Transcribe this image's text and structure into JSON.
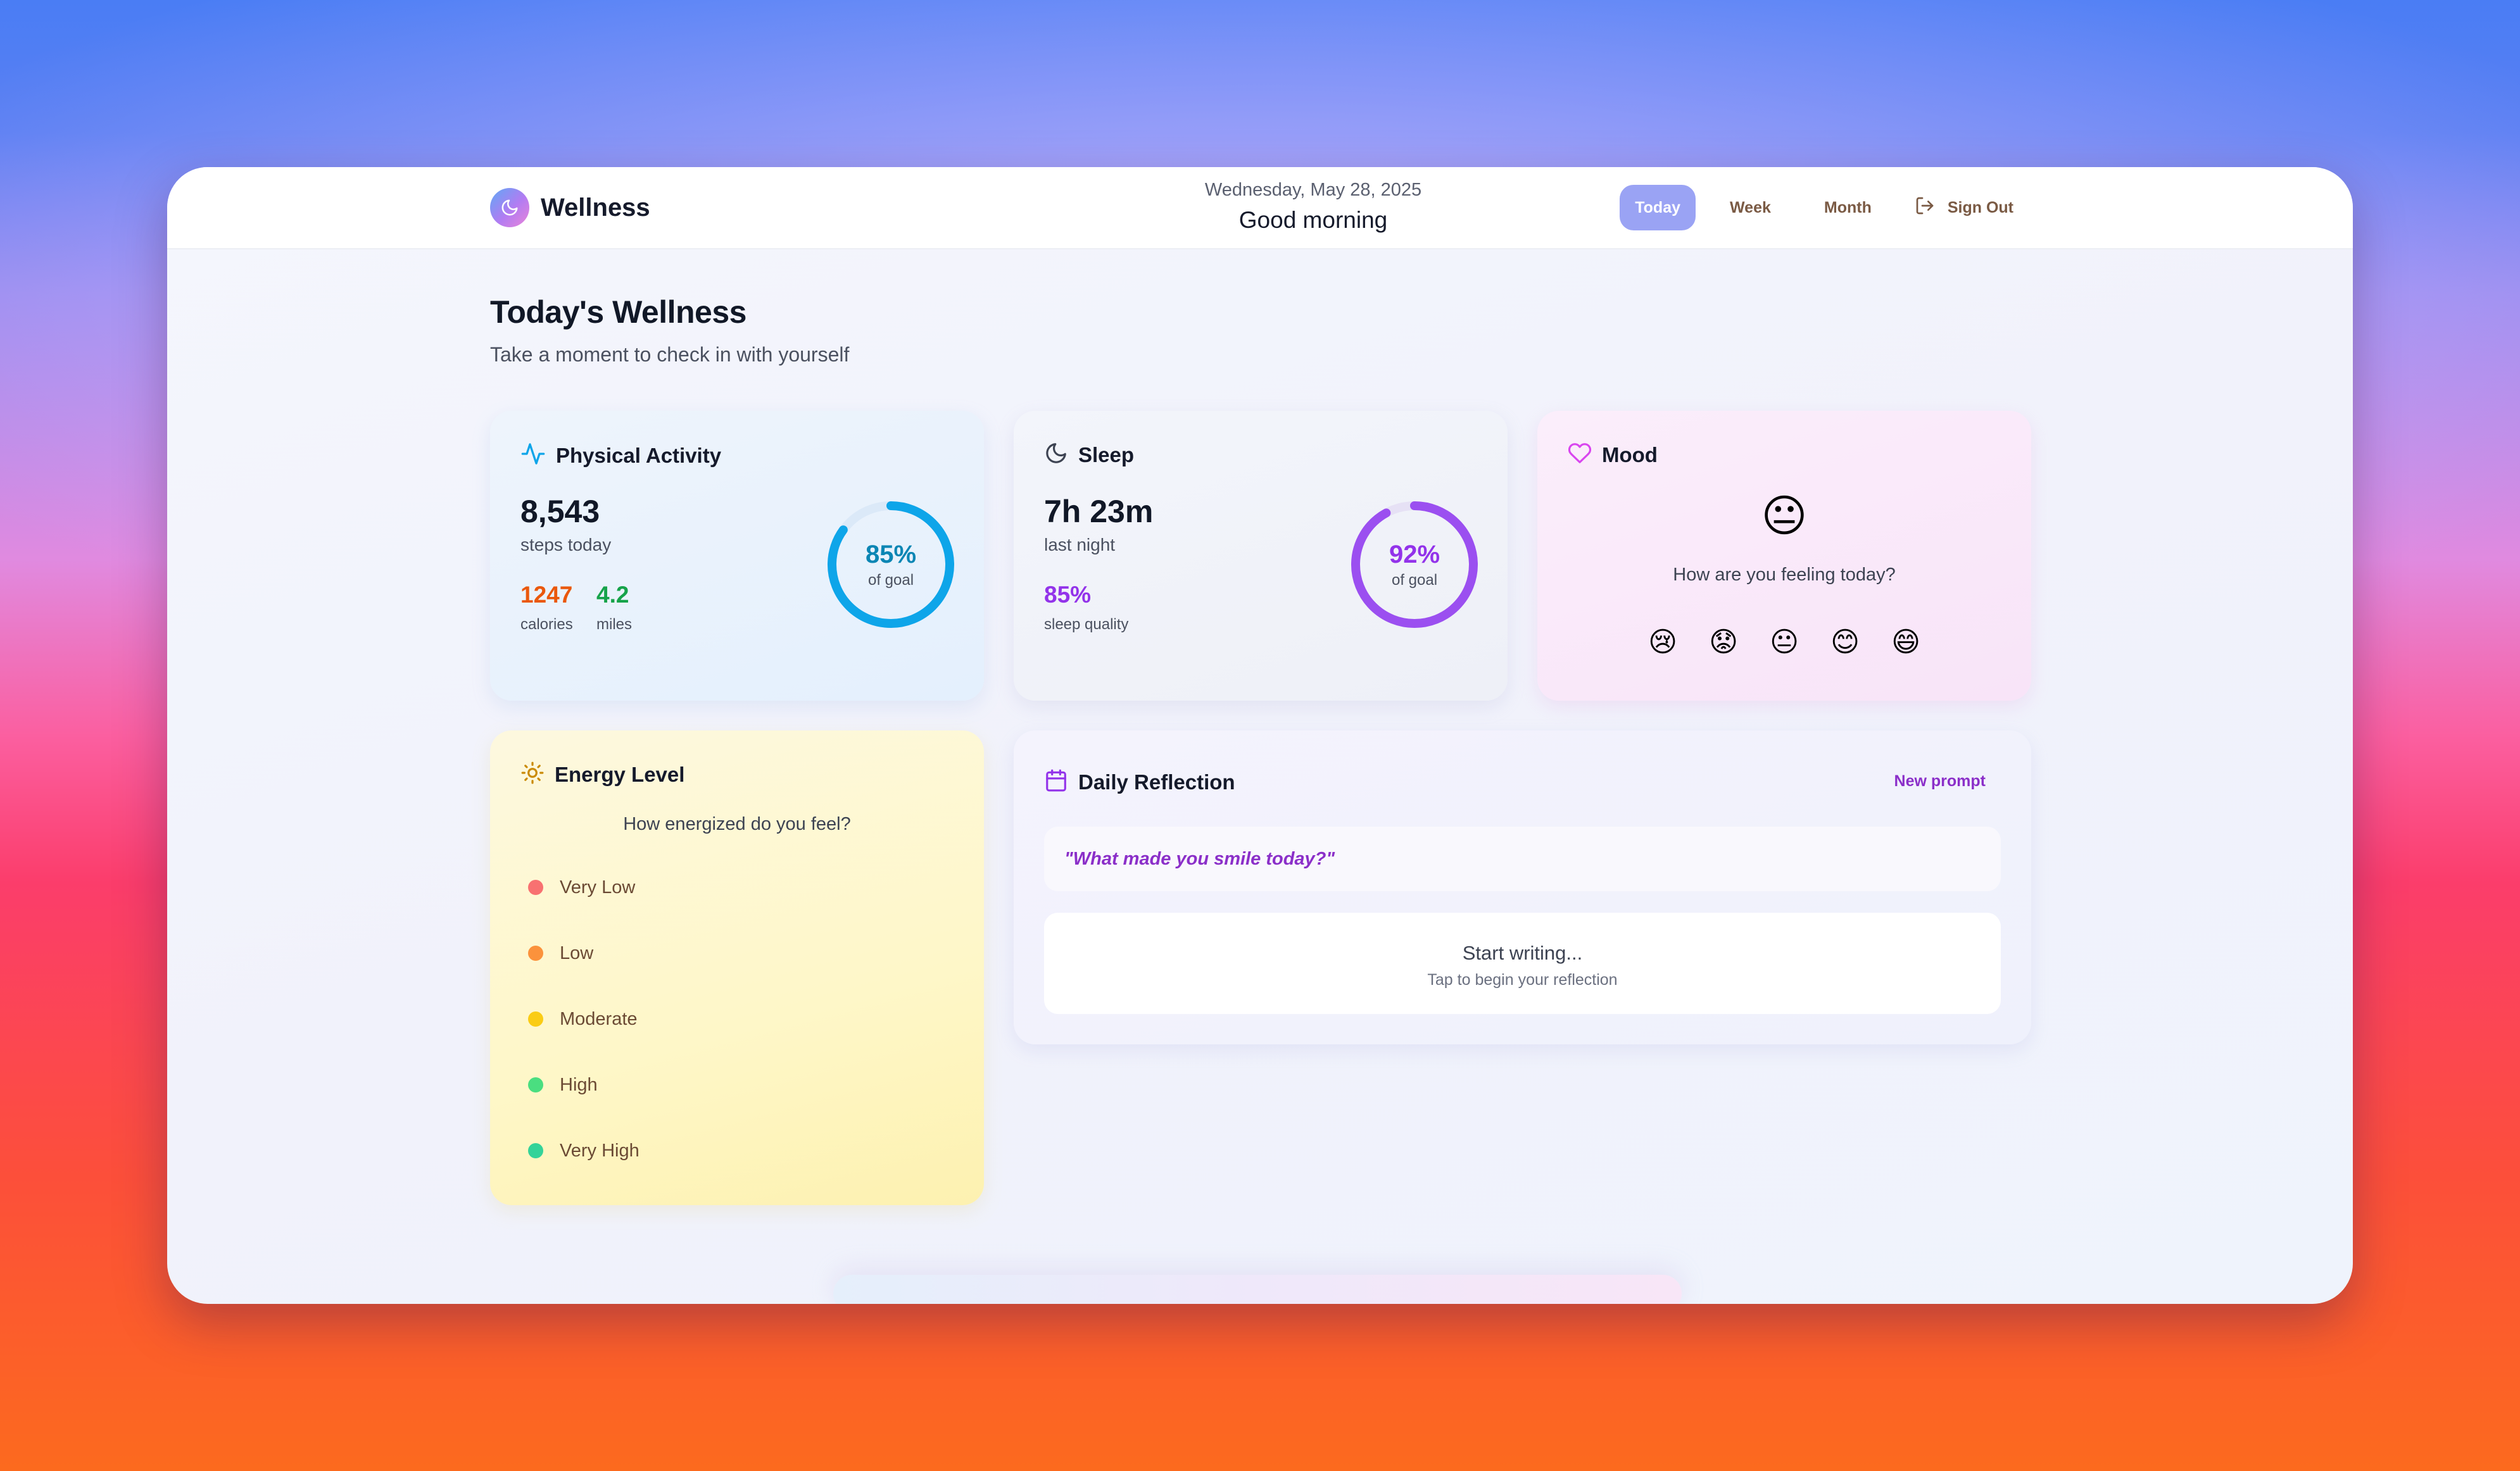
{
  "app": {
    "name": "Wellness"
  },
  "header": {
    "date": "Wednesday, May 28, 2025",
    "greeting": "Good morning",
    "tabs": [
      {
        "label": "Today",
        "active": true
      },
      {
        "label": "Week",
        "active": false
      },
      {
        "label": "Month",
        "active": false
      }
    ],
    "sign_out": "Sign Out"
  },
  "page": {
    "title": "Today's Wellness",
    "subtitle": "Take a moment to check in with yourself"
  },
  "activity": {
    "title": "Physical Activity",
    "steps": "8,543",
    "steps_label": "steps today",
    "calories": "1247",
    "calories_label": "calories",
    "miles": "4.2",
    "miles_label": "miles",
    "goal_pct": "85%",
    "goal_label": "of goal",
    "progress": 0.85,
    "color": "#0ea5e9"
  },
  "sleep": {
    "title": "Sleep",
    "duration": "7h 23m",
    "duration_label": "last night",
    "quality": "85%",
    "quality_label": "sleep quality",
    "goal_pct": "92%",
    "goal_label": "of goal",
    "progress": 0.92,
    "color": "#9b4ff0"
  },
  "mood": {
    "title": "Mood",
    "current": "😐",
    "question": "How are you feeling today?",
    "options": [
      "😢",
      "😟",
      "😐",
      "😊",
      "😄"
    ]
  },
  "energy": {
    "title": "Energy Level",
    "question": "How energized do you feel?",
    "levels": [
      {
        "label": "Very Low",
        "color": "#f87171"
      },
      {
        "label": "Low",
        "color": "#fb923c"
      },
      {
        "label": "Moderate",
        "color": "#facc15"
      },
      {
        "label": "High",
        "color": "#4ade80"
      },
      {
        "label": "Very High",
        "color": "#34d399"
      }
    ]
  },
  "reflection": {
    "title": "Daily Reflection",
    "new_prompt": "New prompt",
    "prompt": "\"What made you smile today?\"",
    "write_title": "Start writing...",
    "write_sub": "Tap to begin your reflection"
  }
}
